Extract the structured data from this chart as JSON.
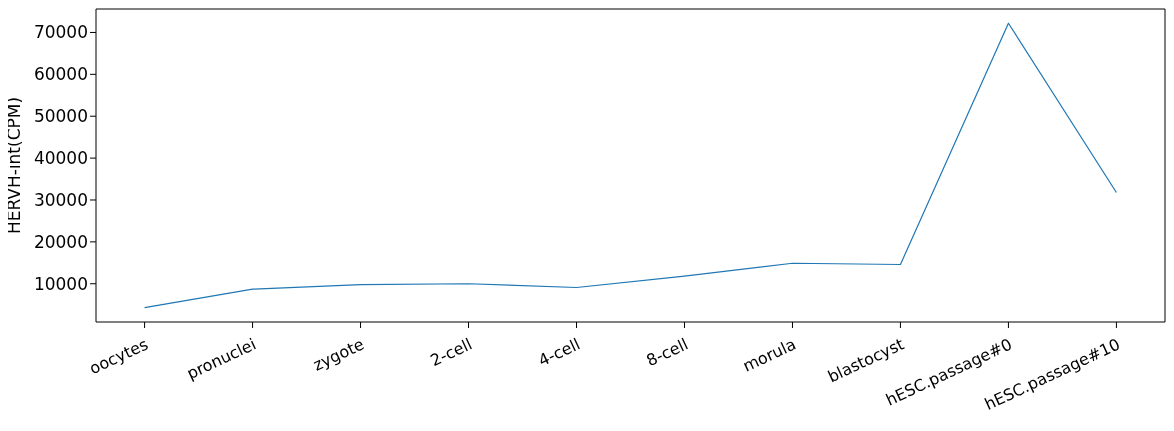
{
  "chart_data": {
    "type": "line",
    "ylabel": "HERVH-int(CPM)",
    "categories": [
      "oocytes",
      "pronuclei",
      "zygote",
      "2-cell",
      "4-cell",
      "8-cell",
      "morula",
      "blastocyst",
      "hESC.passage#0",
      "hESC.passage#10"
    ],
    "series": [
      {
        "color": "#1f77b4",
        "values": [
          4300,
          8700,
          9800,
          10000,
          9100,
          11800,
          14900,
          14600,
          72200,
          31800
        ]
      }
    ],
    "ylim": [
      868,
      75600
    ],
    "yticks": [
      10000,
      20000,
      30000,
      40000,
      50000,
      60000,
      70000
    ]
  }
}
